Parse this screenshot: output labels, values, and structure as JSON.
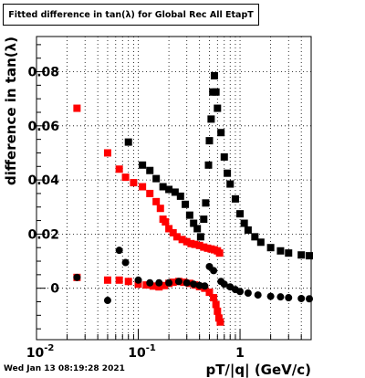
{
  "chart_data": {
    "type": "scatter",
    "title": "Fitted difference in tan(λ) for Global Rec All EtapT",
    "xlabel": "pT/|q| (GeV/c)",
    "ylabel": "difference in tan(λ)",
    "x_scale": "log",
    "xlim": [
      0.01,
      5
    ],
    "ylim": [
      -0.019,
      0.093
    ],
    "x_tick_labels": [
      "10^-2",
      "10^-1",
      "1"
    ],
    "y_ticks": [
      0,
      0.02,
      0.04,
      0.06,
      0.08
    ],
    "y_tick_labels": [
      "0",
      "0.02",
      "0.04",
      "0.06",
      "0.08"
    ],
    "grid": true,
    "timestamp": "Wed Jan 13 08:19:28 2021",
    "series": [
      {
        "color": "#ff0000",
        "marker": "square",
        "points": [
          [
            0.025,
            0.0665
          ],
          [
            0.05,
            0.05
          ],
          [
            0.065,
            0.044
          ],
          [
            0.075,
            0.041
          ],
          [
            0.09,
            0.039
          ],
          [
            0.11,
            0.0375
          ],
          [
            0.13,
            0.035
          ],
          [
            0.15,
            0.032
          ],
          [
            0.165,
            0.0295
          ],
          [
            0.175,
            0.0255
          ],
          [
            0.185,
            0.0245
          ],
          [
            0.2,
            0.022
          ],
          [
            0.22,
            0.0205
          ],
          [
            0.24,
            0.019
          ],
          [
            0.27,
            0.018
          ],
          [
            0.3,
            0.0172
          ],
          [
            0.33,
            0.0165
          ],
          [
            0.36,
            0.0162
          ],
          [
            0.4,
            0.0158
          ],
          [
            0.44,
            0.0152
          ],
          [
            0.48,
            0.0148
          ],
          [
            0.52,
            0.0145
          ],
          [
            0.56,
            0.0142
          ],
          [
            0.6,
            0.0138
          ],
          [
            0.63,
            0.013
          ],
          [
            0.025,
            0.004
          ],
          [
            0.05,
            0.003
          ],
          [
            0.065,
            0.003
          ],
          [
            0.08,
            0.0025
          ],
          [
            0.1,
            0.0015
          ],
          [
            0.12,
            0.0012
          ],
          [
            0.14,
            0.0008
          ],
          [
            0.16,
            0.0005
          ],
          [
            0.18,
            0.001
          ],
          [
            0.2,
            0.0018
          ],
          [
            0.22,
            0.0022
          ],
          [
            0.25,
            0.0025
          ],
          [
            0.28,
            0.0022
          ],
          [
            0.32,
            0.0018
          ],
          [
            0.36,
            0.0012
          ],
          [
            0.4,
            0.0006
          ],
          [
            0.45,
            0.0
          ],
          [
            0.5,
            -0.0015
          ],
          [
            0.55,
            -0.0035
          ],
          [
            0.58,
            -0.006
          ],
          [
            0.6,
            -0.0085
          ],
          [
            0.62,
            -0.011
          ],
          [
            0.64,
            -0.0125
          ]
        ]
      },
      {
        "color": "#000000",
        "marker": "circle",
        "points": [
          [
            0.025,
            0.004
          ],
          [
            0.05,
            -0.0045
          ],
          [
            0.065,
            0.014
          ],
          [
            0.075,
            0.0095
          ],
          [
            0.1,
            0.003
          ],
          [
            0.13,
            0.002
          ],
          [
            0.16,
            0.002
          ],
          [
            0.2,
            0.002
          ],
          [
            0.25,
            0.0025
          ],
          [
            0.3,
            0.002
          ],
          [
            0.35,
            0.0015
          ],
          [
            0.4,
            0.001
          ],
          [
            0.45,
            0.0008
          ],
          [
            0.5,
            0.008
          ],
          [
            0.55,
            0.0065
          ],
          [
            0.65,
            0.0025
          ],
          [
            0.7,
            0.0015
          ],
          [
            0.8,
            0.0005
          ],
          [
            0.9,
            -0.0005
          ],
          [
            1.0,
            -0.0012
          ],
          [
            1.2,
            -0.0018
          ],
          [
            1.5,
            -0.0025
          ],
          [
            2.0,
            -0.003
          ],
          [
            2.5,
            -0.0032
          ],
          [
            3.0,
            -0.0035
          ],
          [
            4.0,
            -0.0038
          ],
          [
            4.8,
            -0.0039
          ]
        ]
      },
      {
        "color": "#000000",
        "marker": "square",
        "points": [
          [
            0.08,
            0.054
          ],
          [
            0.11,
            0.0455
          ],
          [
            0.13,
            0.0435
          ],
          [
            0.15,
            0.0405
          ],
          [
            0.175,
            0.0375
          ],
          [
            0.2,
            0.0365
          ],
          [
            0.23,
            0.0355
          ],
          [
            0.26,
            0.034
          ],
          [
            0.29,
            0.031
          ],
          [
            0.32,
            0.027
          ],
          [
            0.35,
            0.024
          ],
          [
            0.38,
            0.022
          ],
          [
            0.41,
            0.019
          ],
          [
            0.44,
            0.0255
          ],
          [
            0.46,
            0.0315
          ],
          [
            0.49,
            0.0455
          ],
          [
            0.5,
            0.0545
          ],
          [
            0.52,
            0.0625
          ],
          [
            0.54,
            0.0725
          ],
          [
            0.56,
            0.0785
          ],
          [
            0.58,
            0.0725
          ],
          [
            0.6,
            0.0665
          ],
          [
            0.65,
            0.0575
          ],
          [
            0.7,
            0.0485
          ],
          [
            0.75,
            0.0425
          ],
          [
            0.8,
            0.0385
          ],
          [
            0.9,
            0.033
          ],
          [
            1.0,
            0.0275
          ],
          [
            1.1,
            0.024
          ],
          [
            1.2,
            0.0215
          ],
          [
            1.4,
            0.019
          ],
          [
            1.6,
            0.017
          ],
          [
            2.0,
            0.015
          ],
          [
            2.5,
            0.0138
          ],
          [
            3.0,
            0.013
          ],
          [
            4.0,
            0.0123
          ],
          [
            4.8,
            0.012
          ]
        ]
      }
    ]
  }
}
